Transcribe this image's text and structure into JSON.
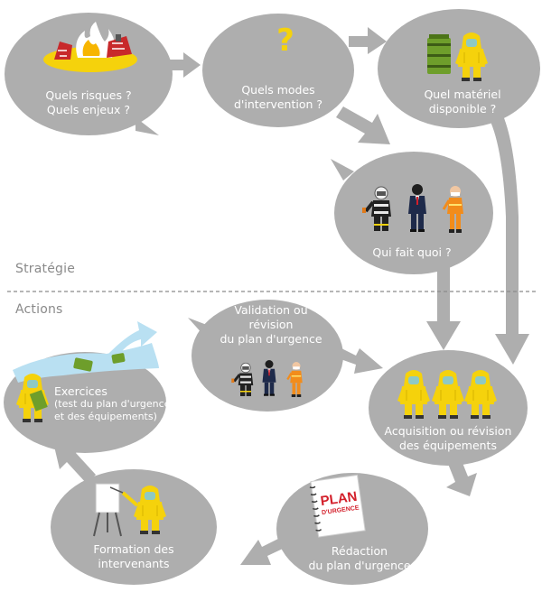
{
  "sections": {
    "strategy_label": "Stratégie",
    "actions_label": "Actions"
  },
  "nodes": {
    "risks": {
      "line1": "Quels risques ?",
      "line2": "Quels enjeux ?"
    },
    "modes": {
      "line1": "Quels modes",
      "line2": "d'intervention ?",
      "glyph": "?"
    },
    "equipment": {
      "line1": "Quel matériel",
      "line2": "disponible ?"
    },
    "roles": {
      "line1": "Qui fait quoi ?"
    },
    "validation": {
      "line1": "Validation ou",
      "line2": "révision",
      "line3": "du plan d'urgence"
    },
    "exercises": {
      "line1": "Exercices",
      "line2": "(test du plan d'urgence",
      "line3": "et des équipements)"
    },
    "acquisition": {
      "line1": "Acquisition ou révision",
      "line2": "des équipements"
    },
    "drafting": {
      "line1": "Rédaction",
      "line2": "du plan d'urgence",
      "book_line1": "PLAN",
      "book_line2": "D'URGENCE"
    },
    "training": {
      "line1": "Formation des",
      "line2": "intervenants"
    }
  },
  "colors": {
    "bubble": "#aeaeae",
    "arrow": "#aeaeae",
    "water": "#b9e0f2",
    "accent_yellow": "#f5d20c",
    "accent_green": "#6e9e2b",
    "plan_red": "#d31f2a"
  },
  "icons": [
    "fire-icon",
    "question-mark-icon",
    "barrel-icon",
    "hazmat-suit-icon",
    "firefighter-icon",
    "manager-icon",
    "responder-icon",
    "flipchart-icon",
    "plan-book-icon"
  ]
}
